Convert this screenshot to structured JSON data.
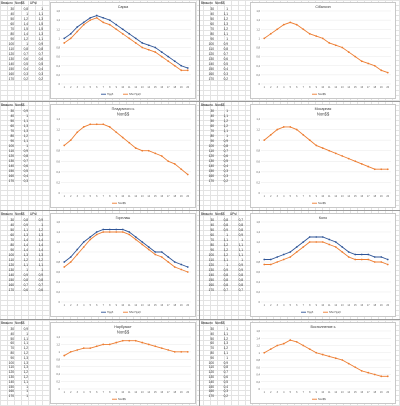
{
  "colors": {
    "orange": "#ED7D31",
    "blue": "#2F5597",
    "grid": "#d9d9d9"
  },
  "x_labels": [
    "1",
    "2",
    "3",
    "4",
    "5",
    "6",
    "7",
    "8",
    "9",
    "10",
    "11",
    "12",
    "13",
    "14",
    "15",
    "16",
    "17",
    "18",
    "19",
    "20"
  ],
  "blocks": [
    {
      "headers": [
        "Ввошло",
        "Non$$",
        "UPsl"
      ],
      "col1": [
        "30",
        "40",
        "50",
        "60",
        "70",
        "80",
        "90",
        "100",
        "110",
        "120",
        "130",
        "140",
        "150",
        "160",
        "170"
      ],
      "col2": [
        "0,8",
        "1",
        "1,2",
        "1,4",
        "1,5",
        "1,4",
        "1,2",
        "1",
        "0,8",
        "0,7",
        "0,6",
        "0,5",
        "0,4",
        "0,3",
        "0,2"
      ],
      "col3": [
        "1",
        "1,1",
        "1,3",
        "1,5",
        "1,5",
        "1,3",
        "1,1",
        "0,9",
        "0,8",
        "0,7",
        "0,6",
        "0,5",
        "0,4",
        "0,3",
        "0,2"
      ],
      "chart": {
        "title": "Сарка",
        "series": [
          {
            "name": "Прдб",
            "color": "#2F5597",
            "values": [
              1.0,
              1.1,
              1.25,
              1.35,
              1.45,
              1.5,
              1.45,
              1.4,
              1.3,
              1.2,
              1.1,
              1.0,
              0.9,
              0.85,
              0.8,
              0.7,
              0.6,
              0.5,
              0.4,
              0.35
            ]
          },
          {
            "name": "Nбо Прдб",
            "color": "#ED7D31",
            "values": [
              0.9,
              1.0,
              1.15,
              1.3,
              1.4,
              1.45,
              1.35,
              1.3,
              1.2,
              1.1,
              1.0,
              0.9,
              0.8,
              0.75,
              0.7,
              0.6,
              0.5,
              0.4,
              0.3,
              0.3
            ]
          }
        ],
        "ylim": [
          0,
          1.6
        ],
        "yticks": [
          "0",
          "0,2",
          "0,4",
          "0,6",
          "0,8",
          "1",
          "1,2",
          "1,4",
          "1,6"
        ]
      }
    },
    {
      "headers": [
        "Ввошло",
        "Non$$"
      ],
      "col1": [
        "30",
        "40",
        "50",
        "60",
        "70",
        "80",
        "90",
        "100",
        "110",
        "120",
        "130",
        "140",
        "150",
        "160",
        "170"
      ],
      "col2": [
        "1",
        "1,1",
        "1,2",
        "1,3",
        "1,2",
        "1,1",
        "1",
        "0,9",
        "0,8",
        "0,7",
        "0,6",
        "0,5",
        "0,4",
        "0,3",
        "0,2"
      ],
      "col3": [],
      "chart": {
        "title": "Сібалочн",
        "series": [
          {
            "name": "Non$$",
            "color": "#ED7D31",
            "values": [
              1.0,
              1.1,
              1.2,
              1.3,
              1.35,
              1.3,
              1.2,
              1.1,
              1.05,
              1.0,
              0.9,
              0.85,
              0.8,
              0.7,
              0.6,
              0.5,
              0.45,
              0.4,
              0.3,
              0.25
            ]
          }
        ],
        "ylim": [
          0,
          1.6
        ],
        "yticks": [
          "0",
          "0,2",
          "0,4",
          "0,6",
          "0,8",
          "1",
          "1,2",
          "1,4",
          "1,6"
        ]
      }
    },
    {
      "headers": [
        "Ввошло",
        "Non$$"
      ],
      "col1": [
        "30",
        "40",
        "50",
        "60",
        "70",
        "80",
        "90",
        "100",
        "110",
        "120",
        "130",
        "140",
        "150",
        "160",
        "170"
      ],
      "col2": [
        "0,9",
        "1",
        "1,1",
        "1,3",
        "1,3",
        "1,2",
        "1,1",
        "1",
        "0,9",
        "0,8",
        "0,7",
        "0,6",
        "0,5",
        "0,4",
        "0,3"
      ],
      "col3": [],
      "chart": {
        "title": "Пладочного ь",
        "legend_top": "Non$$",
        "series": [
          {
            "name": "Non$$",
            "color": "#ED7D31",
            "values": [
              0.9,
              1.0,
              1.15,
              1.25,
              1.3,
              1.3,
              1.3,
              1.25,
              1.15,
              1.05,
              0.95,
              0.85,
              0.8,
              0.8,
              0.75,
              0.7,
              0.6,
              0.55,
              0.45,
              0.35
            ]
          }
        ],
        "ylim": [
          0,
          1.4
        ],
        "yticks": [
          "0",
          "0,2",
          "0,4",
          "0,6",
          "0,8",
          "1",
          "1,2",
          "1,4"
        ]
      }
    },
    {
      "headers": [
        "Ввошло",
        "Non$$"
      ],
      "col1": [
        "30",
        "40",
        "50",
        "60",
        "70",
        "80",
        "90",
        "100",
        "110",
        "120",
        "130",
        "140",
        "150",
        "160",
        "170"
      ],
      "col2": [
        "1",
        "1,1",
        "1,2",
        "1,2",
        "1,1",
        "1",
        "0,9",
        "0,8",
        "0,7",
        "0,6",
        "0,5",
        "0,4",
        "0,3",
        "0,3",
        "0,2"
      ],
      "col3": [],
      "chart": {
        "title": "Мосарная",
        "legend_top": "Non$$",
        "series": [
          {
            "name": "Non$$",
            "color": "#ED7D31",
            "values": [
              1.0,
              1.1,
              1.2,
              1.25,
              1.25,
              1.2,
              1.1,
              1.0,
              0.9,
              0.85,
              0.8,
              0.75,
              0.7,
              0.65,
              0.6,
              0.55,
              0.5,
              0.45,
              0.45,
              0.45
            ]
          }
        ],
        "ylim": [
          0,
          1.4
        ],
        "yticks": [
          "0",
          "0,2",
          "0,4",
          "0,6",
          "0,8",
          "1",
          "1,2",
          "1,4"
        ]
      }
    },
    {
      "headers": [
        "Ввошло",
        "Non$$",
        "UPsl"
      ],
      "col1": [
        "30",
        "40",
        "50",
        "60",
        "70",
        "80",
        "90",
        "100",
        "110",
        "120",
        "130",
        "140",
        "150",
        "160",
        "170"
      ],
      "col2": [
        "0,8",
        "0,9",
        "1,1",
        "1,3",
        "1,4",
        "1,4",
        "1,4",
        "1,3",
        "1,2",
        "1,1",
        "1",
        "0,9",
        "0,8",
        "0,7",
        "0,6"
      ],
      "col3": [
        "0,9",
        "1",
        "1,2",
        "1,3",
        "1,4",
        "1,4",
        "1,4",
        "1,3",
        "1,2",
        "1,1",
        "1",
        "0,9",
        "0,8",
        "0,7",
        "0,6"
      ],
      "chart": {
        "title": "Горплаш",
        "series": [
          {
            "name": "Прдб",
            "color": "#2F5597",
            "values": [
              0.8,
              0.9,
              1.05,
              1.2,
              1.3,
              1.4,
              1.45,
              1.45,
              1.45,
              1.45,
              1.4,
              1.3,
              1.2,
              1.1,
              1.0,
              1.0,
              0.9,
              0.8,
              0.75,
              0.7
            ]
          },
          {
            "name": "Nбо Прдб",
            "color": "#ED7D31",
            "values": [
              0.7,
              0.8,
              0.95,
              1.1,
              1.25,
              1.35,
              1.4,
              1.4,
              1.4,
              1.4,
              1.35,
              1.25,
              1.15,
              1.05,
              0.95,
              0.9,
              0.8,
              0.7,
              0.65,
              0.6
            ]
          }
        ],
        "ylim": [
          0,
          1.6
        ],
        "yticks": [
          "0",
          "0,2",
          "0,4",
          "0,6",
          "0,8",
          "1",
          "1,2",
          "1,4",
          "1,6"
        ]
      }
    },
    {
      "headers": [
        "Ввошло",
        "Non$$",
        "UPsl"
      ],
      "col1": [
        "30",
        "40",
        "50",
        "60",
        "70",
        "80",
        "90",
        "100",
        "110",
        "120",
        "130",
        "140",
        "150",
        "160",
        "170"
      ],
      "col2": [
        "0,8",
        "0,8",
        "0,9",
        "1",
        "1,1",
        "1,2",
        "1,2",
        "1,2",
        "1,1",
        "1",
        "0,9",
        "0,8",
        "0,8",
        "0,8",
        "0,7"
      ],
      "col3": [
        "0,7",
        "0,8",
        "0,8",
        "0,9",
        "1",
        "1,1",
        "1,1",
        "1,1",
        "1",
        "0,9",
        "0,9",
        "0,8",
        "0,8",
        "0,8",
        "0,7"
      ],
      "chart": {
        "title": "Коло",
        "series": [
          {
            "name": "Прдб",
            "color": "#2F5597",
            "values": [
              0.85,
              0.85,
              0.9,
              0.95,
              1.0,
              1.1,
              1.2,
              1.3,
              1.3,
              1.3,
              1.25,
              1.2,
              1.1,
              1.0,
              0.95,
              0.95,
              0.95,
              0.9,
              0.9,
              0.85
            ]
          },
          {
            "name": "Nбо Прдб",
            "color": "#ED7D31",
            "values": [
              0.75,
              0.75,
              0.8,
              0.85,
              0.9,
              1.0,
              1.1,
              1.2,
              1.2,
              1.2,
              1.15,
              1.1,
              1.0,
              0.9,
              0.85,
              0.85,
              0.85,
              0.8,
              0.8,
              0.75
            ]
          }
        ],
        "ylim": [
          0,
          1.6
        ],
        "yticks": [
          "0",
          "0,2",
          "0,4",
          "0,6",
          "0,8",
          "1",
          "1,2",
          "1,4",
          "1,6"
        ]
      }
    },
    {
      "headers": [
        "Ввошло",
        "Non$$"
      ],
      "col1": [
        "30",
        "40",
        "50",
        "60",
        "70",
        "80",
        "90",
        "100",
        "110",
        "120",
        "130",
        "140",
        "150",
        "160",
        "170"
      ],
      "col2": [
        "0,9",
        "1",
        "1,1",
        "1,1",
        "1,2",
        "1,2",
        "1,3",
        "1,3",
        "1,3",
        "1,2",
        "1,2",
        "1,1",
        "1",
        "1",
        "1"
      ],
      "col3": [],
      "chart": {
        "title": "Нарбуаскт",
        "legend_top": "Non$$",
        "series": [
          {
            "name": "Non$$",
            "color": "#ED7D31",
            "values": [
              0.9,
              1.0,
              1.05,
              1.1,
              1.1,
              1.15,
              1.2,
              1.2,
              1.25,
              1.3,
              1.3,
              1.3,
              1.25,
              1.2,
              1.15,
              1.1,
              1.05,
              1.0,
              1.0,
              1.0
            ]
          }
        ],
        "ylim": [
          0,
          1.4
        ],
        "yticks": [
          "0",
          "0,2",
          "0,4",
          "0,6",
          "0,8",
          "1",
          "1,2",
          "1,4"
        ]
      }
    },
    {
      "headers": [
        "Ввошло",
        "Non$$"
      ],
      "col1": [
        "30",
        "40",
        "50",
        "60",
        "70",
        "80",
        "90",
        "100",
        "110",
        "120",
        "130",
        "140",
        "150",
        "160",
        "170"
      ],
      "col2": [
        "1",
        "1,1",
        "1,2",
        "1,3",
        "1,2",
        "1,1",
        "1",
        "0,9",
        "0,8",
        "0,7",
        "0,6",
        "0,5",
        "0,4",
        "0,3",
        "0,2"
      ],
      "col3": [],
      "chart": {
        "title": "Восполнение ь",
        "series": [
          {
            "name": "Non$$",
            "color": "#ED7D31",
            "values": [
              1.0,
              1.1,
              1.2,
              1.25,
              1.35,
              1.3,
              1.2,
              1.1,
              1.0,
              0.95,
              0.9,
              0.85,
              0.8,
              0.7,
              0.6,
              0.5,
              0.45,
              0.4,
              0.35,
              0.35
            ]
          }
        ],
        "ylim": [
          0,
          1.6
        ],
        "yticks": [
          "0",
          "0,2",
          "0,4",
          "0,6",
          "0,8",
          "1",
          "1,2",
          "1,4",
          "1,6"
        ]
      }
    }
  ]
}
